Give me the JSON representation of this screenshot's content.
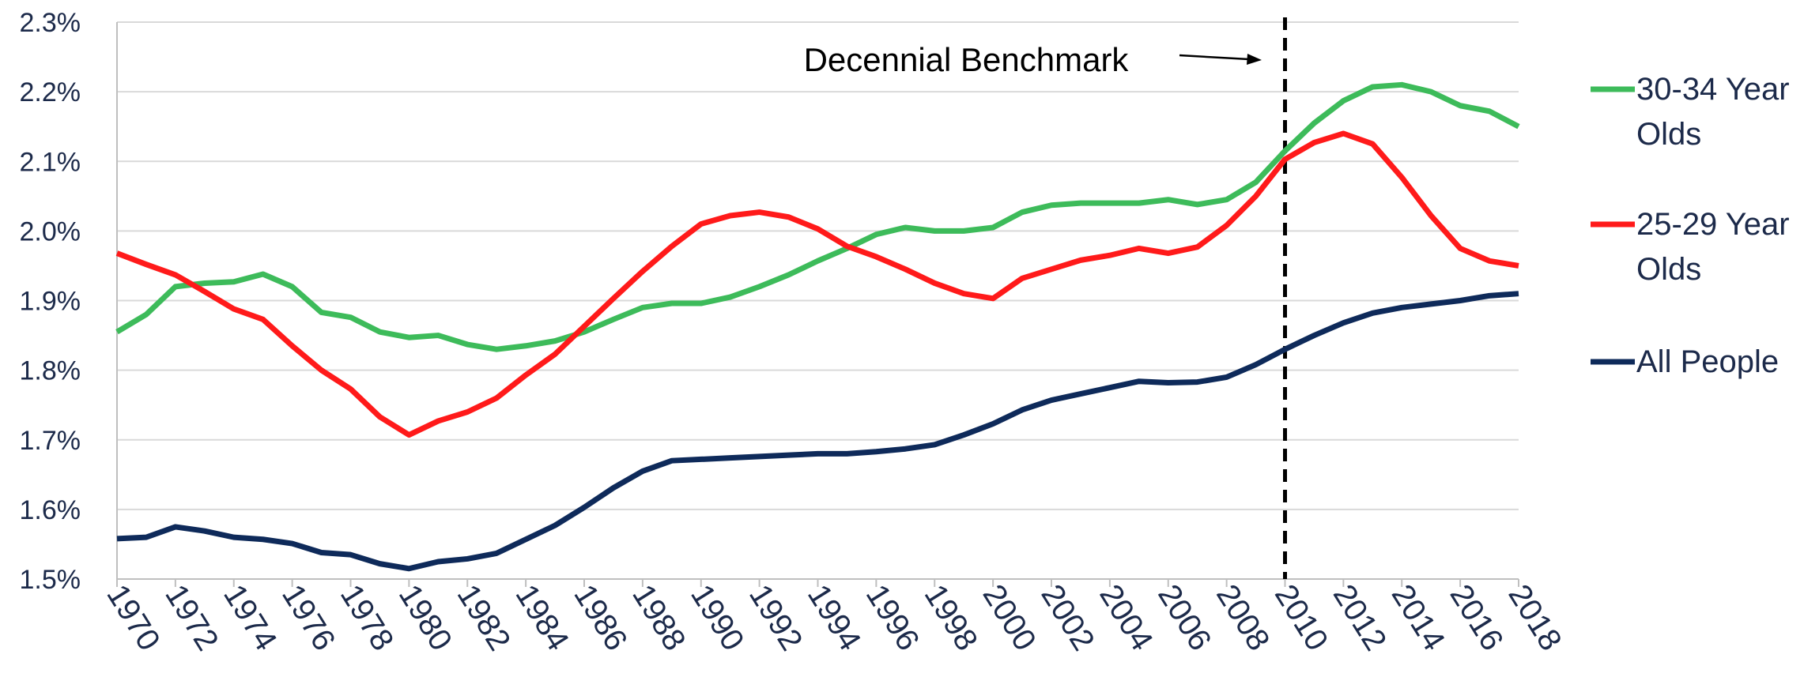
{
  "chart_data": {
    "type": "line",
    "x": [
      1970,
      1971,
      1972,
      1973,
      1974,
      1975,
      1976,
      1977,
      1978,
      1979,
      1980,
      1981,
      1982,
      1983,
      1984,
      1985,
      1986,
      1987,
      1988,
      1989,
      1990,
      1991,
      1992,
      1993,
      1994,
      1995,
      1996,
      1997,
      1998,
      1999,
      2000,
      2001,
      2002,
      2003,
      2004,
      2005,
      2006,
      2007,
      2008,
      2009,
      2010,
      2011,
      2012,
      2013,
      2014,
      2015,
      2016,
      2017,
      2018
    ],
    "series": [
      {
        "name": "30-34 Year Olds",
        "color": "#3dbb5a",
        "values": [
          1.855,
          1.88,
          1.92,
          1.925,
          1.927,
          1.938,
          1.92,
          1.883,
          1.876,
          1.855,
          1.847,
          1.85,
          1.837,
          1.83,
          1.835,
          1.842,
          1.855,
          1.873,
          1.89,
          1.896,
          1.896,
          1.905,
          1.92,
          1.937,
          1.957,
          1.975,
          1.995,
          2.005,
          2.0,
          2.0,
          2.005,
          2.027,
          2.037,
          2.04,
          2.04,
          2.04,
          2.045,
          2.038,
          2.045,
          2.07,
          2.115,
          2.155,
          2.187,
          2.207,
          2.21,
          2.2,
          2.18,
          2.172,
          2.15
        ]
      },
      {
        "name": "25-29 Year Olds",
        "color": "#ff1a1a",
        "values": [
          1.968,
          1.952,
          1.937,
          1.913,
          1.888,
          1.873,
          1.835,
          1.8,
          1.773,
          1.733,
          1.707,
          1.727,
          1.74,
          1.76,
          1.793,
          1.823,
          1.863,
          1.903,
          1.942,
          1.978,
          2.01,
          2.022,
          2.027,
          2.02,
          2.003,
          1.978,
          1.963,
          1.945,
          1.925,
          1.91,
          1.903,
          1.932,
          1.945,
          1.958,
          1.965,
          1.975,
          1.968,
          1.977,
          2.008,
          2.05,
          2.103,
          2.127,
          2.14,
          2.125,
          2.077,
          2.022,
          1.975,
          1.957,
          1.95
        ]
      },
      {
        "name": "All People",
        "color": "#0e2a5a",
        "values": [
          1.558,
          1.56,
          1.575,
          1.569,
          1.56,
          1.557,
          1.551,
          1.538,
          1.535,
          1.522,
          1.515,
          1.525,
          1.529,
          1.537,
          1.557,
          1.577,
          1.603,
          1.631,
          1.655,
          1.67,
          1.672,
          1.674,
          1.676,
          1.678,
          1.68,
          1.68,
          1.683,
          1.687,
          1.693,
          1.707,
          1.723,
          1.743,
          1.757,
          1.766,
          1.775,
          1.784,
          1.782,
          1.783,
          1.79,
          1.808,
          1.83,
          1.85,
          1.868,
          1.882,
          1.89,
          1.895,
          1.9,
          1.907,
          1.91
        ]
      }
    ],
    "xlim": [
      1970,
      2018
    ],
    "xticks": [
      1970,
      1972,
      1974,
      1976,
      1978,
      1980,
      1982,
      1984,
      1986,
      1988,
      1990,
      1992,
      1994,
      1996,
      1998,
      2000,
      2002,
      2004,
      2006,
      2008,
      2010,
      2012,
      2014,
      2016,
      2018
    ],
    "ylim": [
      1.5,
      2.3
    ],
    "yticks": [
      {
        "value": 1.5,
        "label": "1.5%"
      },
      {
        "value": 1.6,
        "label": "1.6%"
      },
      {
        "value": 1.7,
        "label": "1.7%"
      },
      {
        "value": 1.8,
        "label": "1.8%"
      },
      {
        "value": 1.9,
        "label": "1.9%"
      },
      {
        "value": 2.0,
        "label": "2.0%"
      },
      {
        "value": 2.1,
        "label": "2.1%"
      },
      {
        "value": 2.2,
        "label": "2.2%"
      },
      {
        "value": 2.3,
        "label": "2.3%"
      }
    ],
    "grid": true,
    "legend": "right",
    "annotations": [
      {
        "text": "Decennial Benchmark",
        "x": 2010
      }
    ]
  }
}
